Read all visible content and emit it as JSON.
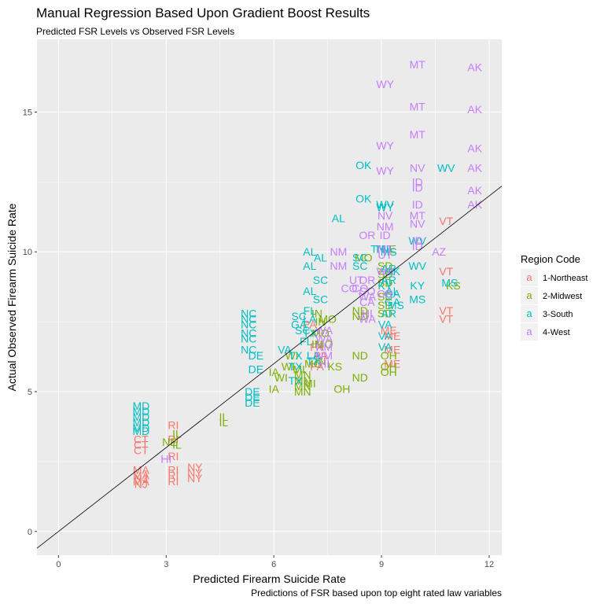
{
  "chart_data": {
    "type": "scatter",
    "title": "Manual Regression Based Upon Gradient Boost Results",
    "subtitle": "Predicted FSR Levels vs Observed FSR Levels",
    "xlabel": "Predicted Firearm Suicide Rate",
    "ylabel": "Actual Observed Firearm Suicide Rate",
    "caption": "Predictions of FSR based upon top eight rated law variables",
    "xlim": [
      -0.6,
      12.35
    ],
    "ylim": [
      -0.85,
      17.6
    ],
    "x_ticks": [
      0,
      3,
      6,
      9,
      12
    ],
    "y_ticks": [
      0,
      5,
      10,
      15
    ],
    "grid": true,
    "reference_line": {
      "intercept": 0.0,
      "slope": 1.0
    },
    "legend": {
      "title": "Region Code",
      "position": "right",
      "entries": [
        {
          "key": "1",
          "label": "1-Northeast",
          "color": "#F8766D",
          "glyph": "a"
        },
        {
          "key": "2",
          "label": "2-Midwest",
          "color": "#7CAE00",
          "glyph": "a"
        },
        {
          "key": "3",
          "label": "3-South",
          "color": "#00BFC4",
          "glyph": "a"
        },
        {
          "key": "4",
          "label": "4-West",
          "color": "#C77CFF",
          "glyph": "a"
        }
      ]
    },
    "series": [
      {
        "name": "1-Northeast",
        "points": [
          {
            "x": 10.8,
            "y": 11.1,
            "label": "VT"
          },
          {
            "x": 10.8,
            "y": 9.3,
            "label": "VT"
          },
          {
            "x": 10.8,
            "y": 7.9,
            "label": "VT"
          },
          {
            "x": 10.8,
            "y": 7.6,
            "label": "VT"
          },
          {
            "x": 9.3,
            "y": 7.0,
            "label": "ME"
          },
          {
            "x": 9.3,
            "y": 6.5,
            "label": "ME"
          },
          {
            "x": 9.3,
            "y": 6.0,
            "label": "ME"
          },
          {
            "x": 9.2,
            "y": 7.2,
            "label": "ME"
          },
          {
            "x": 7.0,
            "y": 7.4,
            "label": "PA"
          },
          {
            "x": 7.2,
            "y": 6.6,
            "label": "PA"
          },
          {
            "x": 7.2,
            "y": 5.9,
            "label": "PA"
          },
          {
            "x": 7.3,
            "y": 6.3,
            "label": "PA"
          },
          {
            "x": 3.2,
            "y": 3.8,
            "label": "RI"
          },
          {
            "x": 3.2,
            "y": 3.3,
            "label": "RI"
          },
          {
            "x": 3.2,
            "y": 2.7,
            "label": "RI"
          },
          {
            "x": 3.2,
            "y": 2.2,
            "label": "RI"
          },
          {
            "x": 3.2,
            "y": 1.8,
            "label": "RI"
          },
          {
            "x": 3.2,
            "y": 2.0,
            "label": "RI"
          },
          {
            "x": 3.8,
            "y": 2.3,
            "label": "NY"
          },
          {
            "x": 3.8,
            "y": 2.1,
            "label": "NY"
          },
          {
            "x": 3.8,
            "y": 1.9,
            "label": "NY"
          },
          {
            "x": 2.3,
            "y": 3.3,
            "label": "CT"
          },
          {
            "x": 2.3,
            "y": 3.1,
            "label": "CT"
          },
          {
            "x": 2.3,
            "y": 2.9,
            "label": "CT"
          },
          {
            "x": 2.3,
            "y": 2.2,
            "label": "MA"
          },
          {
            "x": 2.3,
            "y": 2.0,
            "label": "MA"
          },
          {
            "x": 2.3,
            "y": 1.8,
            "label": "MA"
          },
          {
            "x": 2.3,
            "y": 1.9,
            "label": "NJ"
          },
          {
            "x": 2.3,
            "y": 1.7,
            "label": "NJ"
          }
        ]
      },
      {
        "name": "2-Midwest",
        "points": [
          {
            "x": 11.0,
            "y": 8.8,
            "label": "KS"
          },
          {
            "x": 8.4,
            "y": 6.3,
            "label": "ND"
          },
          {
            "x": 8.4,
            "y": 5.5,
            "label": "ND"
          },
          {
            "x": 8.4,
            "y": 7.9,
            "label": "ND"
          },
          {
            "x": 8.4,
            "y": 7.7,
            "label": "ND"
          },
          {
            "x": 9.2,
            "y": 6.3,
            "label": "OH"
          },
          {
            "x": 9.2,
            "y": 5.9,
            "label": "OH"
          },
          {
            "x": 9.2,
            "y": 5.7,
            "label": "OH"
          },
          {
            "x": 7.9,
            "y": 5.1,
            "label": "OH"
          },
          {
            "x": 9.1,
            "y": 9.5,
            "label": "SD"
          },
          {
            "x": 9.1,
            "y": 9.2,
            "label": "SD"
          },
          {
            "x": 9.1,
            "y": 8.9,
            "label": "SD"
          },
          {
            "x": 9.1,
            "y": 8.4,
            "label": "SD"
          },
          {
            "x": 9.1,
            "y": 8.1,
            "label": "SD"
          },
          {
            "x": 9.1,
            "y": 7.8,
            "label": "SD"
          },
          {
            "x": 8.5,
            "y": 9.8,
            "label": "MO"
          },
          {
            "x": 7.7,
            "y": 5.9,
            "label": "KS"
          },
          {
            "x": 7.5,
            "y": 7.6,
            "label": "MO"
          },
          {
            "x": 7.3,
            "y": 7.1,
            "label": "MO"
          },
          {
            "x": 7.4,
            "y": 6.7,
            "label": "MO"
          },
          {
            "x": 7.1,
            "y": 6.0,
            "label": "MO"
          },
          {
            "x": 6.4,
            "y": 5.9,
            "label": "WI"
          },
          {
            "x": 6.5,
            "y": 6.3,
            "label": "WI"
          },
          {
            "x": 6.2,
            "y": 5.5,
            "label": "WI"
          },
          {
            "x": 6.0,
            "y": 5.7,
            "label": "IA"
          },
          {
            "x": 6.0,
            "y": 5.1,
            "label": "IA"
          },
          {
            "x": 6.8,
            "y": 5.6,
            "label": "MN"
          },
          {
            "x": 6.8,
            "y": 5.4,
            "label": "MN"
          },
          {
            "x": 6.8,
            "y": 5.2,
            "label": "MN"
          },
          {
            "x": 6.8,
            "y": 5.0,
            "label": "MN"
          },
          {
            "x": 6.7,
            "y": 5.8,
            "label": "MI"
          },
          {
            "x": 7.0,
            "y": 5.3,
            "label": "MI"
          },
          {
            "x": 7.2,
            "y": 7.8,
            "label": "IN"
          },
          {
            "x": 7.3,
            "y": 7.5,
            "label": "IN"
          },
          {
            "x": 7.3,
            "y": 6.1,
            "label": "IN"
          },
          {
            "x": 7.2,
            "y": 6.7,
            "label": "IN"
          },
          {
            "x": 4.6,
            "y": 4.1,
            "label": "IL"
          },
          {
            "x": 4.6,
            "y": 3.9,
            "label": "IL"
          },
          {
            "x": 3.3,
            "y": 3.5,
            "label": "IL"
          },
          {
            "x": 3.3,
            "y": 3.1,
            "label": "IL"
          },
          {
            "x": 3.1,
            "y": 3.2,
            "label": "NE"
          },
          {
            "x": 9.2,
            "y": 10.1,
            "label": "NE"
          }
        ]
      },
      {
        "name": "3-South",
        "points": [
          {
            "x": 10.8,
            "y": 13.0,
            "label": "WV"
          },
          {
            "x": 10.0,
            "y": 10.4,
            "label": "WV"
          },
          {
            "x": 10.0,
            "y": 9.5,
            "label": "WV"
          },
          {
            "x": 10.0,
            "y": 8.8,
            "label": "KY"
          },
          {
            "x": 10.0,
            "y": 8.3,
            "label": "MS"
          },
          {
            "x": 10.9,
            "y": 8.9,
            "label": "MS"
          },
          {
            "x": 8.5,
            "y": 13.1,
            "label": "OK"
          },
          {
            "x": 8.5,
            "y": 11.9,
            "label": "OK"
          },
          {
            "x": 9.1,
            "y": 11.7,
            "label": "WV"
          },
          {
            "x": 9.1,
            "y": 11.6,
            "label": "WY"
          },
          {
            "x": 7.8,
            "y": 11.2,
            "label": "AL"
          },
          {
            "x": 7.0,
            "y": 10.0,
            "label": "AL"
          },
          {
            "x": 7.3,
            "y": 9.8,
            "label": "AL"
          },
          {
            "x": 7.0,
            "y": 9.5,
            "label": "AL"
          },
          {
            "x": 7.0,
            "y": 8.6,
            "label": "AL"
          },
          {
            "x": 7.3,
            "y": 8.3,
            "label": "SC"
          },
          {
            "x": 7.3,
            "y": 9.0,
            "label": "SC"
          },
          {
            "x": 8.4,
            "y": 9.8,
            "label": "SC"
          },
          {
            "x": 8.4,
            "y": 9.5,
            "label": "SC"
          },
          {
            "x": 8.9,
            "y": 10.1,
            "label": "TN"
          },
          {
            "x": 9.0,
            "y": 10.1,
            "label": "TN"
          },
          {
            "x": 9.2,
            "y": 9.4,
            "label": "AR"
          },
          {
            "x": 9.2,
            "y": 9.0,
            "label": "AR"
          },
          {
            "x": 9.3,
            "y": 8.5,
            "label": "GA"
          },
          {
            "x": 9.3,
            "y": 8.2,
            "label": "GA"
          },
          {
            "x": 9.2,
            "y": 7.8,
            "label": "AR"
          },
          {
            "x": 9.1,
            "y": 7.4,
            "label": "VA"
          },
          {
            "x": 9.1,
            "y": 7.0,
            "label": "VA"
          },
          {
            "x": 9.1,
            "y": 6.6,
            "label": "VA"
          },
          {
            "x": 5.3,
            "y": 7.8,
            "label": "NC"
          },
          {
            "x": 5.3,
            "y": 7.6,
            "label": "NC"
          },
          {
            "x": 5.3,
            "y": 7.4,
            "label": "NC"
          },
          {
            "x": 5.3,
            "y": 7.1,
            "label": "NC"
          },
          {
            "x": 5.3,
            "y": 6.9,
            "label": "NC"
          },
          {
            "x": 5.3,
            "y": 6.5,
            "label": "NC"
          },
          {
            "x": 5.5,
            "y": 6.3,
            "label": "DE"
          },
          {
            "x": 5.5,
            "y": 5.8,
            "label": "DE"
          },
          {
            "x": 5.4,
            "y": 5.0,
            "label": "DE"
          },
          {
            "x": 5.4,
            "y": 4.8,
            "label": "DE"
          },
          {
            "x": 5.4,
            "y": 4.6,
            "label": "DE"
          },
          {
            "x": 6.7,
            "y": 7.7,
            "label": "SC"
          },
          {
            "x": 6.7,
            "y": 7.4,
            "label": "GA"
          },
          {
            "x": 6.8,
            "y": 7.2,
            "label": "SC"
          },
          {
            "x": 7.0,
            "y": 7.1,
            "label": "TX"
          },
          {
            "x": 7.0,
            "y": 7.9,
            "label": "FL"
          },
          {
            "x": 6.9,
            "y": 6.8,
            "label": "FL"
          },
          {
            "x": 6.3,
            "y": 6.5,
            "label": "VA"
          },
          {
            "x": 6.6,
            "y": 6.3,
            "label": "TX"
          },
          {
            "x": 6.6,
            "y": 5.9,
            "label": "TX"
          },
          {
            "x": 6.6,
            "y": 5.4,
            "label": "TX"
          },
          {
            "x": 7.1,
            "y": 6.1,
            "label": "TX"
          },
          {
            "x": 7.0,
            "y": 7.6,
            "label": "LA"
          },
          {
            "x": 7.1,
            "y": 6.3,
            "label": "LA"
          },
          {
            "x": 2.3,
            "y": 4.5,
            "label": "MD"
          },
          {
            "x": 2.3,
            "y": 4.3,
            "label": "MD"
          },
          {
            "x": 2.3,
            "y": 4.1,
            "label": "MD"
          },
          {
            "x": 2.3,
            "y": 3.9,
            "label": "MD"
          },
          {
            "x": 2.3,
            "y": 3.7,
            "label": "MD"
          },
          {
            "x": 2.3,
            "y": 3.6,
            "label": "MD"
          },
          {
            "x": 9.1,
            "y": 8.8,
            "label": "KY"
          },
          {
            "x": 9.3,
            "y": 8.6,
            "label": "AL"
          },
          {
            "x": 9.4,
            "y": 8.1,
            "label": "MS"
          },
          {
            "x": 9.2,
            "y": 10.0,
            "label": "MS"
          },
          {
            "x": 9.3,
            "y": 9.3,
            "label": "OK"
          }
        ]
      },
      {
        "name": "4-West",
        "points": [
          {
            "x": 10.0,
            "y": 16.7,
            "label": "MT"
          },
          {
            "x": 10.0,
            "y": 15.2,
            "label": "MT"
          },
          {
            "x": 10.0,
            "y": 14.2,
            "label": "MT"
          },
          {
            "x": 11.6,
            "y": 16.6,
            "label": "AK"
          },
          {
            "x": 11.6,
            "y": 15.1,
            "label": "AK"
          },
          {
            "x": 11.6,
            "y": 13.7,
            "label": "AK"
          },
          {
            "x": 11.6,
            "y": 13.0,
            "label": "AK"
          },
          {
            "x": 11.6,
            "y": 12.2,
            "label": "AK"
          },
          {
            "x": 11.6,
            "y": 11.7,
            "label": "AK"
          },
          {
            "x": 9.1,
            "y": 16.0,
            "label": "WY"
          },
          {
            "x": 9.1,
            "y": 13.8,
            "label": "WY"
          },
          {
            "x": 9.1,
            "y": 12.9,
            "label": "WY"
          },
          {
            "x": 10.0,
            "y": 13.0,
            "label": "NV"
          },
          {
            "x": 10.0,
            "y": 12.5,
            "label": "ID"
          },
          {
            "x": 10.0,
            "y": 12.3,
            "label": "ID"
          },
          {
            "x": 10.0,
            "y": 11.7,
            "label": "ID"
          },
          {
            "x": 10.0,
            "y": 11.3,
            "label": "MT"
          },
          {
            "x": 10.0,
            "y": 11.0,
            "label": "NV"
          },
          {
            "x": 10.0,
            "y": 10.4,
            "label": "ID"
          },
          {
            "x": 10.0,
            "y": 10.2,
            "label": "ID"
          },
          {
            "x": 10.6,
            "y": 10.0,
            "label": "AZ"
          },
          {
            "x": 9.1,
            "y": 11.3,
            "label": "NV"
          },
          {
            "x": 9.1,
            "y": 10.9,
            "label": "NM"
          },
          {
            "x": 9.1,
            "y": 10.6,
            "label": "ID"
          },
          {
            "x": 9.1,
            "y": 10.1,
            "label": "MT"
          },
          {
            "x": 9.1,
            "y": 9.9,
            "label": "UT"
          },
          {
            "x": 8.6,
            "y": 10.6,
            "label": "OR"
          },
          {
            "x": 8.6,
            "y": 9.0,
            "label": "OR"
          },
          {
            "x": 8.6,
            "y": 8.6,
            "label": "CO"
          },
          {
            "x": 8.6,
            "y": 8.2,
            "label": "CA"
          },
          {
            "x": 8.6,
            "y": 7.8,
            "label": "HI"
          },
          {
            "x": 8.4,
            "y": 8.7,
            "label": "CO"
          },
          {
            "x": 8.6,
            "y": 8.4,
            "label": "WA"
          },
          {
            "x": 8.6,
            "y": 7.6,
            "label": "WA"
          },
          {
            "x": 8.3,
            "y": 9.0,
            "label": "UT"
          },
          {
            "x": 7.8,
            "y": 10.0,
            "label": "NM"
          },
          {
            "x": 7.8,
            "y": 9.5,
            "label": "NM"
          },
          {
            "x": 8.1,
            "y": 8.7,
            "label": "CO"
          },
          {
            "x": 7.4,
            "y": 7.2,
            "label": "WA"
          },
          {
            "x": 7.4,
            "y": 6.9,
            "label": "WA"
          },
          {
            "x": 7.4,
            "y": 6.6,
            "label": "NM"
          },
          {
            "x": 7.4,
            "y": 6.3,
            "label": "NM"
          },
          {
            "x": 7.4,
            "y": 6.0,
            "label": "HI"
          },
          {
            "x": 3.0,
            "y": 2.6,
            "label": "HI"
          },
          {
            "x": 9.1,
            "y": 9.3,
            "label": "WA"
          },
          {
            "x": 9.1,
            "y": 8.5,
            "label": "OR"
          }
        ]
      }
    ]
  }
}
